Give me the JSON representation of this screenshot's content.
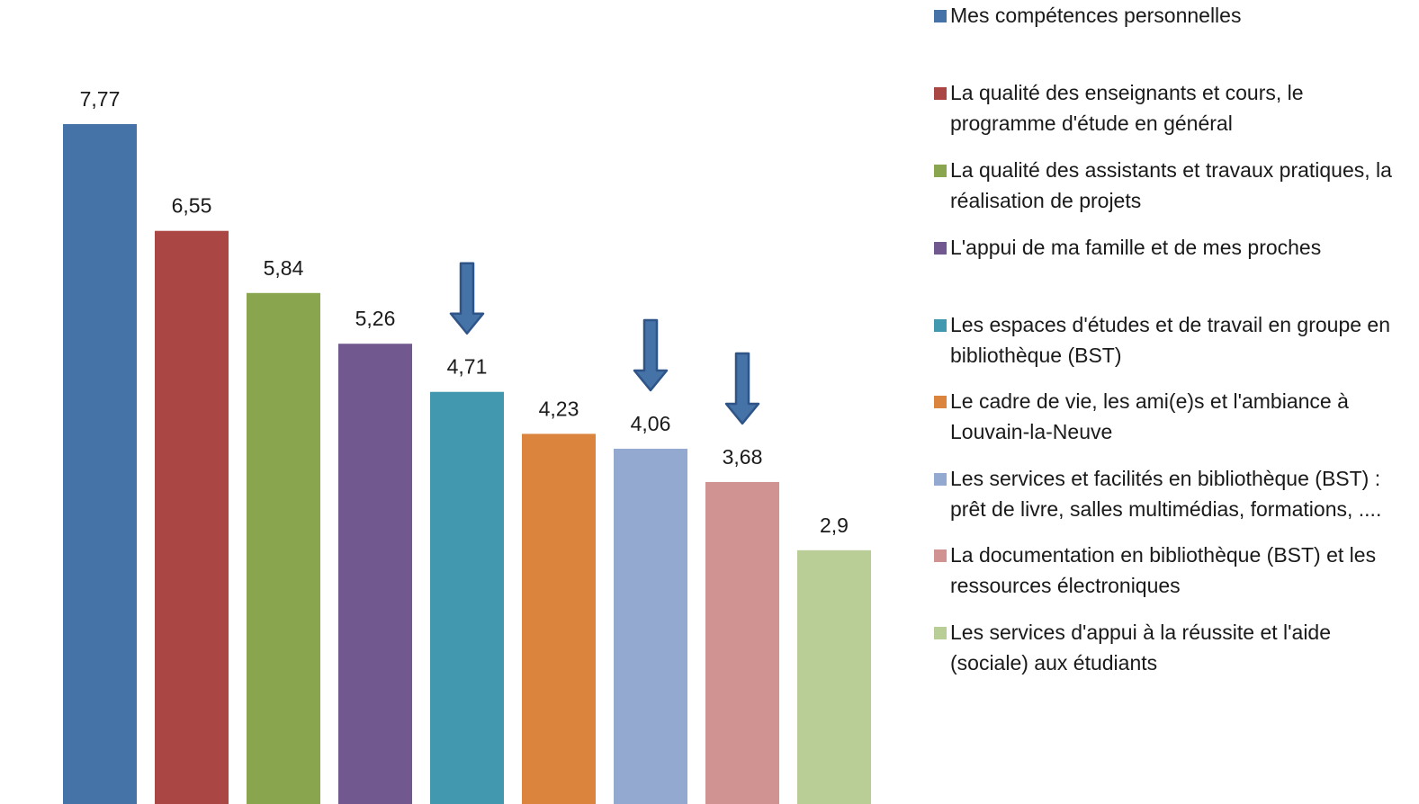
{
  "chart_data": {
    "type": "bar",
    "categories": [
      "Mes compétences personnelles",
      "La qualité des enseignants et cours, le programme d'étude en général",
      "La qualité des assistants et travaux pratiques, la réalisation de projets",
      "L'appui de ma famille et de mes proches",
      "Les espaces d'études et de travail en groupe en bibliothèque (BST)",
      "Le cadre de vie, les ami(e)s et l'ambiance à Louvain-la-Neuve",
      "Les services et facilités en bibliothèque (BST) : prêt de livre, salles multimédias, formations, ....",
      "La documentation en bibliothèque (BST) et les ressources électroniques",
      "Les services d'appui à la réussite et l'aide (sociale) aux étudiants"
    ],
    "values": [
      7.77,
      6.55,
      5.84,
      5.26,
      4.71,
      4.23,
      4.06,
      3.68,
      2.9
    ],
    "value_labels": [
      "7,77",
      "6,55",
      "5,84",
      "5,26",
      "4,71",
      "4,23",
      "4,06",
      "3,68",
      "2,9"
    ],
    "colors": [
      "#4572a7",
      "#aa4643",
      "#89a54e",
      "#71588f",
      "#4198af",
      "#db843d",
      "#93a9cf",
      "#d19392",
      "#b9cd96"
    ],
    "highlighted_indices": [
      4,
      6,
      7
    ],
    "highlight_marker": "down-arrow-icon",
    "highlight_color": "#4572a7",
    "legend_position": "right",
    "grid": false,
    "ylim": [
      0,
      8.9
    ]
  }
}
